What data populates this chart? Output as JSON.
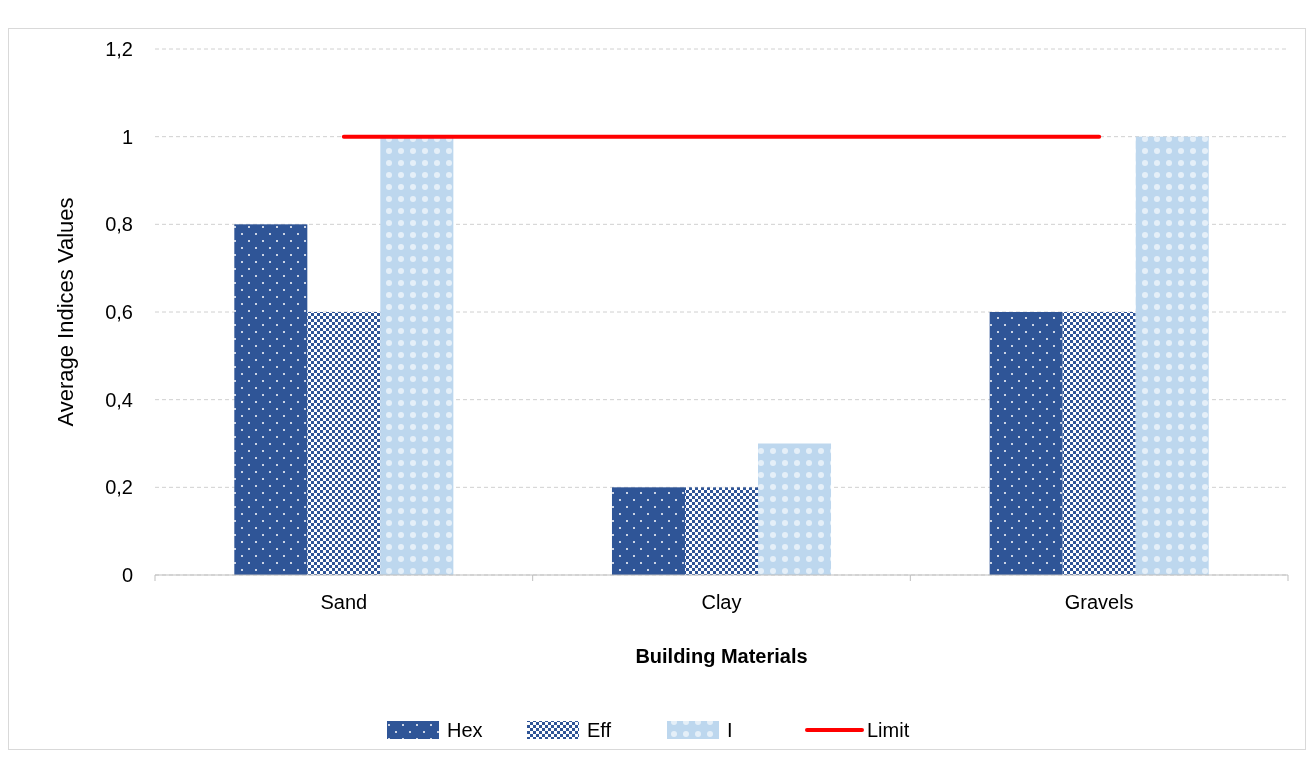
{
  "chart_data": {
    "type": "bar",
    "xlabel": "Building Materials",
    "ylabel": "Average Indices Values",
    "categories": [
      "Sand",
      "Clay",
      "Gravels"
    ],
    "series": [
      {
        "name": "Hex",
        "color": "#2f5597",
        "values": [
          0.8,
          0.2,
          0.6
        ]
      },
      {
        "name": "Eff",
        "color": "#2f5597",
        "values": [
          0.6,
          0.2,
          0.6
        ]
      },
      {
        "name": "I",
        "color": "#bdd7ee",
        "values": [
          1,
          0.3,
          1
        ]
      },
      {
        "name": "Limit",
        "type": "line",
        "color": "#ff0000",
        "values": [
          1,
          1,
          1
        ]
      }
    ],
    "ylim": [
      0,
      1.2
    ],
    "yticks": [
      {
        "value": 0,
        "label": "0"
      },
      {
        "value": 0.2,
        "label": "0,2"
      },
      {
        "value": 0.4,
        "label": "0,4"
      },
      {
        "value": 0.6,
        "label": "0,6"
      },
      {
        "value": 0.8,
        "label": "0,8"
      },
      {
        "value": 1,
        "label": "1"
      },
      {
        "value": 1.2,
        "label": "1,2"
      }
    ],
    "grid": "y",
    "legend": "bottom"
  }
}
